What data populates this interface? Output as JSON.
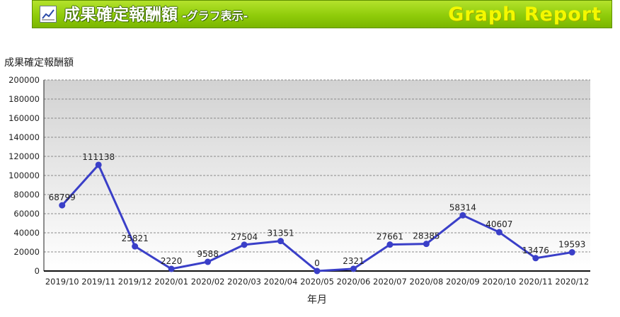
{
  "header": {
    "title": "成果確定報酬額",
    "subtitle": "-グラフ表示-",
    "brand": "Graph Report",
    "icon": "line-chart-icon"
  },
  "chart_data": {
    "type": "line",
    "ylabel": "成果確定報酬額",
    "xlabel": "年月",
    "categories": [
      "2019/10",
      "2019/11",
      "2019/12",
      "2020/01",
      "2020/02",
      "2020/03",
      "2020/04",
      "2020/05",
      "2020/06",
      "2020/07",
      "2020/08",
      "2020/09",
      "2020/10",
      "2020/11",
      "2020/12"
    ],
    "series": [
      {
        "values": [
          68799,
          111138,
          25821,
          2220,
          9588,
          27504,
          31351,
          0,
          2321,
          27661,
          28385,
          58314,
          40607,
          13476,
          19593
        ]
      }
    ],
    "ylim": [
      0,
      200000
    ],
    "yticks": [
      0,
      20000,
      40000,
      60000,
      80000,
      100000,
      120000,
      140000,
      160000,
      180000,
      200000
    ],
    "grid": true,
    "line_color": "#3a3fc8"
  }
}
